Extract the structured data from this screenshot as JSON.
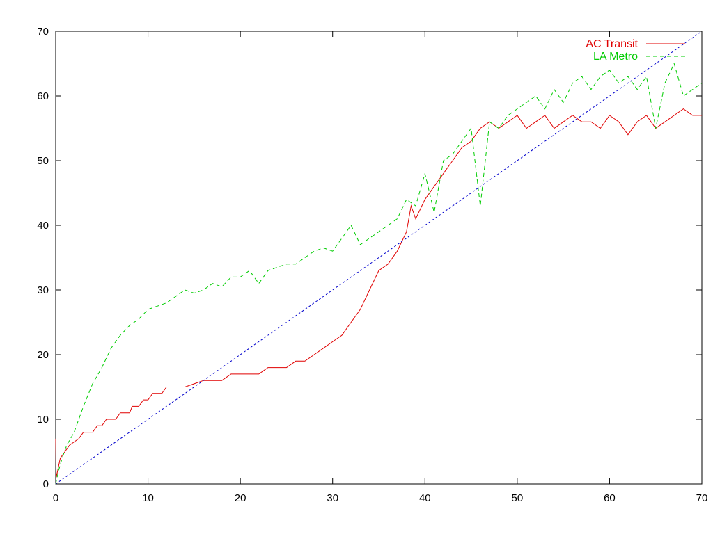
{
  "chart_data": {
    "type": "line",
    "title": "",
    "xlabel": "",
    "ylabel": "",
    "xlim": [
      0,
      70
    ],
    "ylim": [
      0,
      70
    ],
    "x_ticks": [
      "0",
      "10",
      "20",
      "30",
      "40",
      "50",
      "60",
      "70"
    ],
    "y_ticks": [
      "0",
      "10",
      "20",
      "30",
      "40",
      "50",
      "60",
      "70"
    ],
    "grid": false,
    "legend_position": "top-right",
    "series": [
      {
        "name": "AC Transit",
        "color": "#e00000",
        "style": "solid",
        "points": [
          [
            0,
            7
          ],
          [
            0.05,
            1
          ],
          [
            0.2,
            2
          ],
          [
            0.5,
            4
          ],
          [
            1,
            5
          ],
          [
            1.5,
            6
          ],
          [
            2,
            6.5
          ],
          [
            2.5,
            7
          ],
          [
            3,
            8
          ],
          [
            4,
            8
          ],
          [
            4.5,
            9
          ],
          [
            5,
            9
          ],
          [
            5.5,
            10
          ],
          [
            6.5,
            10
          ],
          [
            7,
            11
          ],
          [
            8,
            11
          ],
          [
            8.3,
            12
          ],
          [
            9,
            12
          ],
          [
            9.5,
            13
          ],
          [
            10,
            13
          ],
          [
            10.5,
            14
          ],
          [
            11.5,
            14
          ],
          [
            12,
            15
          ],
          [
            14,
            15
          ],
          [
            15,
            15.5
          ],
          [
            16,
            16
          ],
          [
            18,
            16
          ],
          [
            19,
            17
          ],
          [
            22,
            17
          ],
          [
            23,
            18
          ],
          [
            25,
            18
          ],
          [
            26,
            19
          ],
          [
            27,
            19
          ],
          [
            28,
            20
          ],
          [
            29,
            21
          ],
          [
            30,
            22
          ],
          [
            31,
            23
          ],
          [
            32,
            25
          ],
          [
            33,
            27
          ],
          [
            34,
            30
          ],
          [
            35,
            33
          ],
          [
            36,
            34
          ],
          [
            37,
            36
          ],
          [
            38,
            39
          ],
          [
            38.5,
            43
          ],
          [
            39,
            41
          ],
          [
            40,
            44
          ],
          [
            41,
            46
          ],
          [
            42,
            48
          ],
          [
            43,
            50
          ],
          [
            44,
            52
          ],
          [
            45,
            53
          ],
          [
            46,
            55
          ],
          [
            47,
            56
          ],
          [
            48,
            55
          ],
          [
            49,
            56
          ],
          [
            50,
            57
          ],
          [
            51,
            55
          ],
          [
            52,
            56
          ],
          [
            53,
            57
          ],
          [
            54,
            55
          ],
          [
            55,
            56
          ],
          [
            56,
            57
          ],
          [
            57,
            56
          ],
          [
            58,
            56
          ],
          [
            59,
            55
          ],
          [
            60,
            57
          ],
          [
            61,
            56
          ],
          [
            62,
            54
          ],
          [
            63,
            56
          ],
          [
            64,
            57
          ],
          [
            65,
            55
          ],
          [
            66,
            56
          ],
          [
            67,
            57
          ],
          [
            68,
            58
          ],
          [
            69,
            57
          ],
          [
            70,
            57
          ]
        ]
      },
      {
        "name": "LA Metro",
        "color": "#00cc00",
        "style": "dashed",
        "points": [
          [
            0,
            0
          ],
          [
            0.3,
            2
          ],
          [
            0.7,
            4
          ],
          [
            1.2,
            6
          ],
          [
            2,
            8
          ],
          [
            3,
            12
          ],
          [
            4,
            15.5
          ],
          [
            5,
            18
          ],
          [
            6,
            21
          ],
          [
            7,
            23
          ],
          [
            8,
            24.5
          ],
          [
            9,
            25.5
          ],
          [
            10,
            27
          ],
          [
            11,
            27.5
          ],
          [
            12,
            28
          ],
          [
            13,
            29
          ],
          [
            14,
            30
          ],
          [
            15,
            29.5
          ],
          [
            16,
            30
          ],
          [
            17,
            31
          ],
          [
            18,
            30.5
          ],
          [
            19,
            32
          ],
          [
            20,
            32
          ],
          [
            21,
            33
          ],
          [
            22,
            31
          ],
          [
            23,
            33
          ],
          [
            24,
            33.5
          ],
          [
            25,
            34
          ],
          [
            26,
            34
          ],
          [
            27,
            35
          ],
          [
            28,
            36
          ],
          [
            29,
            36.5
          ],
          [
            30,
            36
          ],
          [
            31,
            38
          ],
          [
            32,
            40
          ],
          [
            33,
            37
          ],
          [
            34,
            38
          ],
          [
            35,
            39
          ],
          [
            36,
            40
          ],
          [
            37,
            41
          ],
          [
            38,
            44
          ],
          [
            39,
            43
          ],
          [
            40,
            48
          ],
          [
            41,
            42
          ],
          [
            42,
            50
          ],
          [
            43,
            51
          ],
          [
            44,
            53
          ],
          [
            45,
            55
          ],
          [
            46,
            43
          ],
          [
            47,
            56
          ],
          [
            48,
            55
          ],
          [
            49,
            57
          ],
          [
            50,
            58
          ],
          [
            51,
            59
          ],
          [
            52,
            60
          ],
          [
            53,
            58
          ],
          [
            54,
            61
          ],
          [
            55,
            59
          ],
          [
            56,
            62
          ],
          [
            57,
            63
          ],
          [
            58,
            61
          ],
          [
            59,
            63
          ],
          [
            60,
            64
          ],
          [
            61,
            62
          ],
          [
            62,
            63
          ],
          [
            63,
            61
          ],
          [
            64,
            63
          ],
          [
            65,
            55
          ],
          [
            66,
            62
          ],
          [
            67,
            65
          ],
          [
            68,
            60
          ],
          [
            69,
            61
          ],
          [
            70,
            62
          ]
        ]
      },
      {
        "name": "",
        "color": "#0000cc",
        "style": "dotted",
        "points": [
          [
            0,
            0
          ],
          [
            70,
            70
          ]
        ]
      }
    ]
  }
}
